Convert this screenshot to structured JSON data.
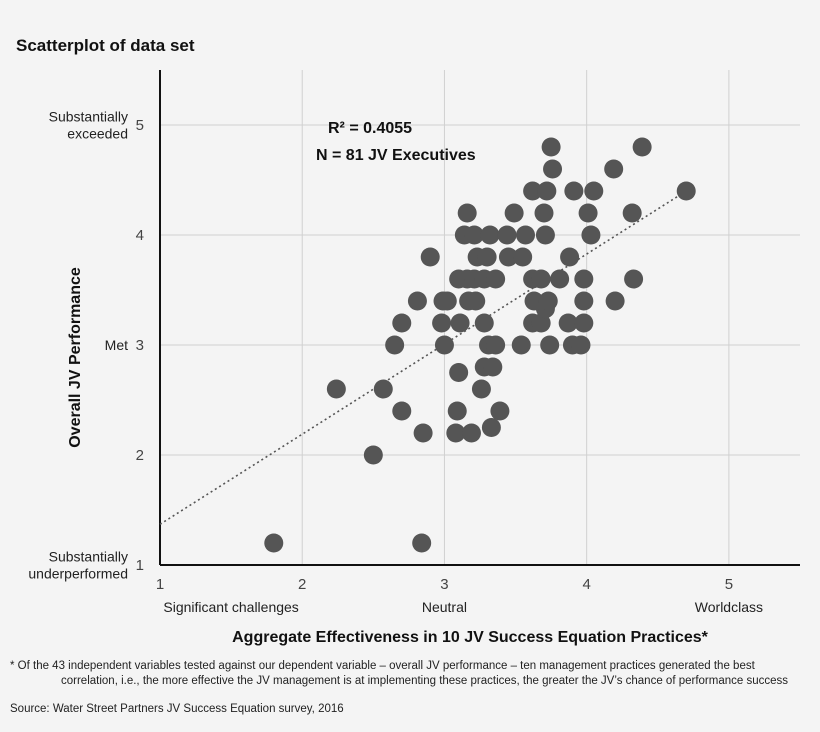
{
  "chart_data": {
    "type": "scatter",
    "title": "Scatterplot of data set",
    "xlabel": "Aggregate Effectiveness in 10 JV Success Equation Practices*",
    "ylabel": "Overall JV Performance",
    "xlim": [
      1,
      5.5
    ],
    "ylim": [
      1,
      5.5
    ],
    "x_ticks": [
      "1",
      "2",
      "3",
      "4",
      "5"
    ],
    "y_ticks": [
      "1",
      "2",
      "3",
      "4",
      "5"
    ],
    "x_category_labels": [
      {
        "x": 1.5,
        "label": "Significant challenges"
      },
      {
        "x": 3.0,
        "label": "Neutral"
      },
      {
        "x": 5.0,
        "label": "Worldclass"
      }
    ],
    "y_category_labels": [
      {
        "y": 5,
        "lines": [
          "Substantially",
          "exceeded"
        ]
      },
      {
        "y": 3,
        "lines": [
          "Met"
        ]
      },
      {
        "y": 1,
        "lines": [
          "Substantially",
          "underperformed"
        ]
      }
    ],
    "annotations": [
      "R² = 0.4055",
      "N = 81 JV Executives"
    ],
    "grid": "vertical",
    "trendline": {
      "type": "linear",
      "x": [
        1.0,
        4.7
      ],
      "y": [
        1.37,
        4.4
      ]
    },
    "points": [
      [
        1.8,
        1.2
      ],
      [
        2.84,
        1.2
      ],
      [
        2.5,
        2.0
      ],
      [
        2.85,
        2.2
      ],
      [
        3.08,
        2.2
      ],
      [
        3.19,
        2.2
      ],
      [
        3.33,
        2.25
      ],
      [
        2.7,
        2.4
      ],
      [
        3.09,
        2.4
      ],
      [
        3.39,
        2.4
      ],
      [
        2.24,
        2.6
      ],
      [
        2.57,
        2.6
      ],
      [
        3.26,
        2.6
      ],
      [
        3.1,
        2.75
      ],
      [
        3.28,
        2.8
      ],
      [
        3.34,
        2.8
      ],
      [
        2.65,
        3.0
      ],
      [
        3.0,
        3.0
      ],
      [
        3.31,
        3.0
      ],
      [
        3.36,
        3.0
      ],
      [
        3.54,
        3.0
      ],
      [
        3.74,
        3.0
      ],
      [
        3.9,
        3.0
      ],
      [
        3.96,
        3.0
      ],
      [
        2.7,
        3.2
      ],
      [
        2.98,
        3.2
      ],
      [
        3.11,
        3.2
      ],
      [
        3.28,
        3.2
      ],
      [
        3.62,
        3.2
      ],
      [
        3.68,
        3.2
      ],
      [
        3.87,
        3.2
      ],
      [
        3.98,
        3.2
      ],
      [
        3.71,
        3.33
      ],
      [
        2.81,
        3.4
      ],
      [
        2.99,
        3.4
      ],
      [
        3.02,
        3.4
      ],
      [
        3.17,
        3.4
      ],
      [
        3.22,
        3.4
      ],
      [
        3.63,
        3.4
      ],
      [
        3.73,
        3.4
      ],
      [
        3.98,
        3.4
      ],
      [
        4.2,
        3.4
      ],
      [
        3.1,
        3.6
      ],
      [
        3.16,
        3.6
      ],
      [
        3.21,
        3.6
      ],
      [
        3.28,
        3.6
      ],
      [
        3.36,
        3.6
      ],
      [
        3.62,
        3.6
      ],
      [
        3.68,
        3.6
      ],
      [
        3.81,
        3.6
      ],
      [
        3.98,
        3.6
      ],
      [
        4.33,
        3.6
      ],
      [
        2.9,
        3.8
      ],
      [
        3.23,
        3.8
      ],
      [
        3.3,
        3.8
      ],
      [
        3.45,
        3.8
      ],
      [
        3.55,
        3.8
      ],
      [
        3.88,
        3.8
      ],
      [
        3.14,
        4.0
      ],
      [
        3.21,
        4.0
      ],
      [
        3.32,
        4.0
      ],
      [
        3.44,
        4.0
      ],
      [
        3.57,
        4.0
      ],
      [
        3.71,
        4.0
      ],
      [
        4.03,
        4.0
      ],
      [
        3.16,
        4.2
      ],
      [
        3.49,
        4.2
      ],
      [
        3.7,
        4.2
      ],
      [
        4.01,
        4.2
      ],
      [
        4.32,
        4.2
      ],
      [
        3.62,
        4.4
      ],
      [
        3.72,
        4.4
      ],
      [
        3.91,
        4.4
      ],
      [
        4.05,
        4.4
      ],
      [
        4.7,
        4.4
      ],
      [
        3.76,
        4.6
      ],
      [
        4.19,
        4.6
      ],
      [
        3.75,
        4.8
      ],
      [
        4.39,
        4.8
      ]
    ]
  },
  "footnote": {
    "line1": "* Of the 43 independent variables tested against our dependent variable – overall JV performance – ten management practices generated the best",
    "line2": "correlation, i.e., the more effective the JV management is at implementing these practices, the greater the JV’s chance of performance success"
  },
  "source": "Source: Water Street Partners JV Success Equation survey, 2016",
  "colors": {
    "points": "#555555",
    "grid": "#d0d0d0",
    "axis": "#111111",
    "trend": "#555555"
  }
}
